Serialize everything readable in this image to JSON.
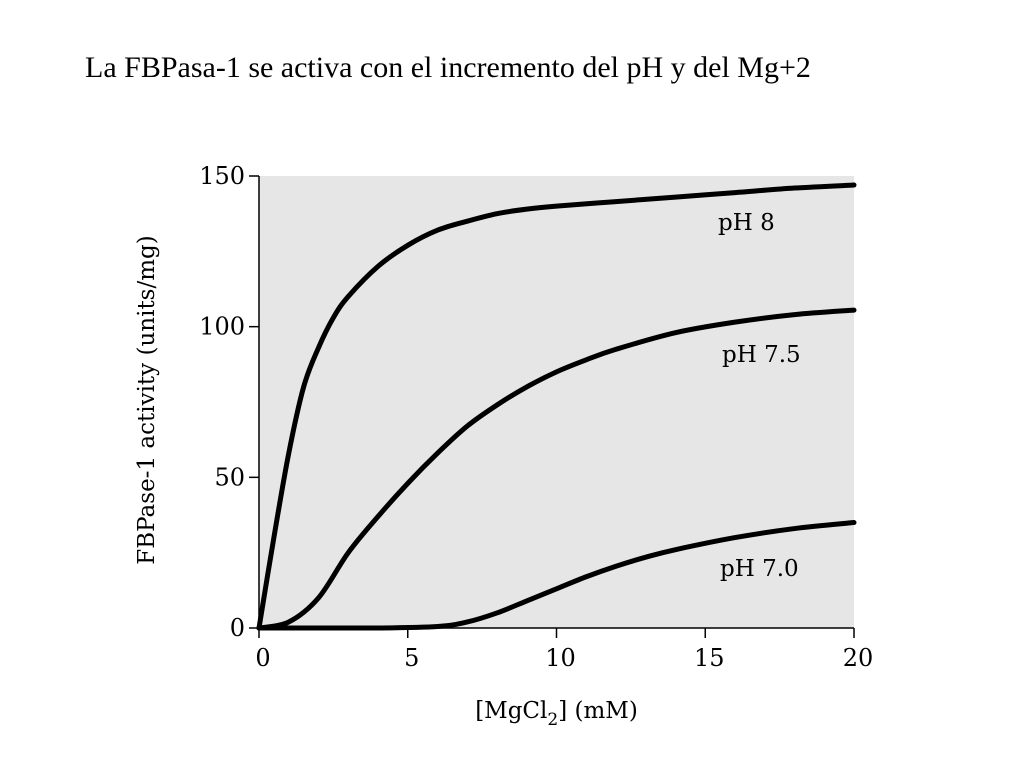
{
  "page": {
    "title": "La FBPasa-1 se activa con el incremento del pH y del Mg+2"
  },
  "chart_data": {
    "type": "line",
    "title": "",
    "xlabel": "[MgCl₂] (mM)",
    "ylabel": "FBPase-1 activity (units/mg)",
    "xlim": [
      0,
      20
    ],
    "ylim": [
      0,
      150
    ],
    "x_ticks": [
      0,
      5,
      10,
      15,
      20
    ],
    "y_ticks": [
      0,
      50,
      100,
      150
    ],
    "grid": false,
    "background_color": "#e6e6e6",
    "line_color": "#000000",
    "legend": "none",
    "series": [
      {
        "name": "pH 8",
        "x": [
          0,
          0.5,
          1,
          1.5,
          2,
          2.5,
          3,
          4,
          5,
          6,
          7,
          8,
          9,
          10,
          12,
          14,
          16,
          18,
          20
        ],
        "y": [
          0,
          30,
          58,
          80,
          93,
          103,
          110,
          120,
          127,
          132,
          135,
          137.5,
          139,
          140,
          141.5,
          143,
          144.5,
          146,
          147
        ]
      },
      {
        "name": "pH 7.5",
        "x": [
          0,
          1,
          2,
          3,
          4,
          5,
          6,
          7,
          8,
          9,
          10,
          11,
          12,
          14,
          16,
          18,
          20
        ],
        "y": [
          0,
          2,
          10,
          25,
          37,
          48,
          58,
          67,
          74,
          80,
          85,
          89,
          92.5,
          98,
          101.5,
          104,
          105.5
        ]
      },
      {
        "name": "pH 7.0",
        "x": [
          0,
          2,
          4,
          6,
          7,
          8,
          9,
          10,
          11,
          12,
          13,
          14,
          16,
          18,
          20
        ],
        "y": [
          0,
          0,
          0,
          0.5,
          2,
          5,
          9,
          13,
          17,
          20.5,
          23.5,
          26,
          30,
          33,
          35
        ]
      }
    ]
  }
}
